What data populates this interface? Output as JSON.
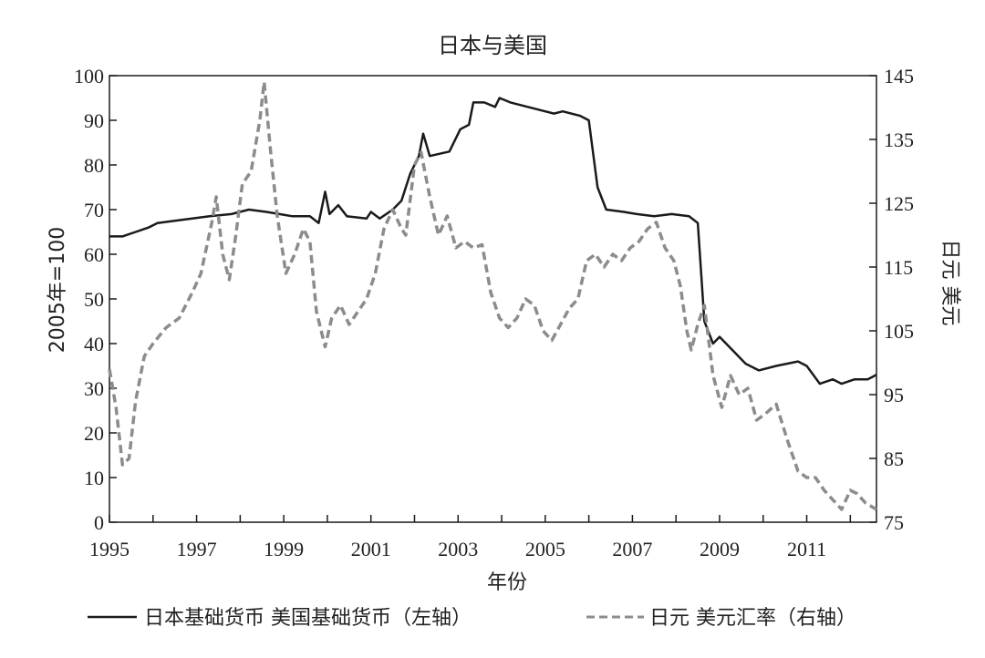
{
  "chart_data": {
    "type": "line",
    "title": "日本与美国",
    "xlabel": "年份",
    "ylabel_left": "2005年=100",
    "ylabel_right": "日元 美元",
    "xlim": [
      1995,
      2012.6
    ],
    "ylim_left": [
      0,
      100
    ],
    "ylim_right": [
      75,
      145
    ],
    "x_ticks": [
      1995,
      1997,
      1999,
      2001,
      2003,
      2005,
      2007,
      2009,
      2011
    ],
    "y_ticks_left": [
      0,
      10,
      20,
      30,
      40,
      50,
      60,
      70,
      80,
      90,
      100
    ],
    "y_ticks_right": [
      75,
      85,
      95,
      105,
      115,
      125,
      135,
      145
    ],
    "grid": false,
    "legend_position": "bottom",
    "series": [
      {
        "name": "日本基础货币 美国基础货币（左轴）",
        "axis": "left",
        "color": "#1a1a1a",
        "style": "solid",
        "points": [
          [
            1995.0,
            64
          ],
          [
            1995.3,
            64
          ],
          [
            1995.6,
            65
          ],
          [
            1995.9,
            66
          ],
          [
            1996.1,
            67
          ],
          [
            1996.5,
            67.5
          ],
          [
            1996.9,
            68
          ],
          [
            1997.3,
            68.5
          ],
          [
            1997.8,
            69
          ],
          [
            1998.2,
            70
          ],
          [
            1998.6,
            69.5
          ],
          [
            1998.9,
            69
          ],
          [
            1999.2,
            68.5
          ],
          [
            1999.6,
            68.5
          ],
          [
            1999.8,
            67
          ],
          [
            1999.95,
            74
          ],
          [
            2000.05,
            69
          ],
          [
            2000.25,
            71
          ],
          [
            2000.45,
            68.5
          ],
          [
            2000.9,
            68
          ],
          [
            2001.0,
            69.5
          ],
          [
            2001.2,
            68
          ],
          [
            2001.5,
            70
          ],
          [
            2001.7,
            72
          ],
          [
            2001.9,
            78
          ],
          [
            2002.1,
            82
          ],
          [
            2002.2,
            87
          ],
          [
            2002.35,
            82
          ],
          [
            2002.8,
            83
          ],
          [
            2003.05,
            88
          ],
          [
            2003.25,
            89
          ],
          [
            2003.35,
            94
          ],
          [
            2003.6,
            94
          ],
          [
            2003.85,
            93
          ],
          [
            2003.95,
            95
          ],
          [
            2004.2,
            94
          ],
          [
            2004.6,
            93
          ],
          [
            2005.0,
            92
          ],
          [
            2005.2,
            91.5
          ],
          [
            2005.4,
            92
          ],
          [
            2005.8,
            91
          ],
          [
            2006.0,
            90
          ],
          [
            2006.2,
            75
          ],
          [
            2006.4,
            70
          ],
          [
            2006.8,
            69.5
          ],
          [
            2007.1,
            69
          ],
          [
            2007.5,
            68.5
          ],
          [
            2007.9,
            69
          ],
          [
            2008.3,
            68.5
          ],
          [
            2008.5,
            67
          ],
          [
            2008.65,
            45
          ],
          [
            2008.85,
            40
          ],
          [
            2009.0,
            41.5
          ],
          [
            2009.3,
            38.5
          ],
          [
            2009.6,
            35.5
          ],
          [
            2009.9,
            34
          ],
          [
            2010.3,
            35
          ],
          [
            2010.8,
            36
          ],
          [
            2011.0,
            35
          ],
          [
            2011.3,
            31
          ],
          [
            2011.6,
            32
          ],
          [
            2011.8,
            31
          ],
          [
            2012.1,
            32
          ],
          [
            2012.4,
            32
          ],
          [
            2012.6,
            33
          ]
        ]
      },
      {
        "name": "日元 美元汇率（右轴）",
        "axis": "right",
        "color": "#8c8c8c",
        "style": "dashed",
        "points": [
          [
            1995.0,
            99
          ],
          [
            1995.15,
            93
          ],
          [
            1995.3,
            84
          ],
          [
            1995.45,
            85
          ],
          [
            1995.6,
            94
          ],
          [
            1995.8,
            101
          ],
          [
            1996.0,
            103
          ],
          [
            1996.3,
            105.5
          ],
          [
            1996.6,
            107
          ],
          [
            1996.9,
            111
          ],
          [
            1997.1,
            114
          ],
          [
            1997.35,
            122
          ],
          [
            1997.45,
            126
          ],
          [
            1997.6,
            117
          ],
          [
            1997.75,
            113
          ],
          [
            1997.9,
            120
          ],
          [
            1998.05,
            128
          ],
          [
            1998.25,
            130
          ],
          [
            1998.45,
            138
          ],
          [
            1998.55,
            144
          ],
          [
            1998.7,
            133
          ],
          [
            1998.85,
            123
          ],
          [
            1999.05,
            114
          ],
          [
            1999.25,
            117
          ],
          [
            1999.45,
            121
          ],
          [
            1999.6,
            119
          ],
          [
            1999.75,
            108
          ],
          [
            1999.95,
            102.5
          ],
          [
            2000.1,
            107
          ],
          [
            2000.3,
            109
          ],
          [
            2000.5,
            106
          ],
          [
            2000.7,
            108
          ],
          [
            2000.9,
            110
          ],
          [
            2001.1,
            114
          ],
          [
            2001.3,
            121
          ],
          [
            2001.5,
            124
          ],
          [
            2001.7,
            121
          ],
          [
            2001.8,
            120
          ],
          [
            2002.0,
            131
          ],
          [
            2002.15,
            133
          ],
          [
            2002.35,
            126
          ],
          [
            2002.55,
            120
          ],
          [
            2002.75,
            123
          ],
          [
            2002.95,
            118
          ],
          [
            2003.15,
            119
          ],
          [
            2003.35,
            118
          ],
          [
            2003.55,
            118.5
          ],
          [
            2003.75,
            111
          ],
          [
            2003.95,
            107
          ],
          [
            2004.15,
            105.5
          ],
          [
            2004.35,
            107
          ],
          [
            2004.55,
            110
          ],
          [
            2004.75,
            109
          ],
          [
            2004.95,
            105
          ],
          [
            2005.15,
            103.5
          ],
          [
            2005.35,
            106
          ],
          [
            2005.55,
            108.5
          ],
          [
            2005.75,
            110
          ],
          [
            2005.95,
            116
          ],
          [
            2006.15,
            117
          ],
          [
            2006.35,
            115
          ],
          [
            2006.55,
            117
          ],
          [
            2006.75,
            116
          ],
          [
            2006.95,
            118
          ],
          [
            2007.15,
            119
          ],
          [
            2007.35,
            121
          ],
          [
            2007.55,
            122
          ],
          [
            2007.75,
            118
          ],
          [
            2007.95,
            116
          ],
          [
            2008.1,
            112
          ],
          [
            2008.25,
            105
          ],
          [
            2008.35,
            102
          ],
          [
            2008.5,
            106
          ],
          [
            2008.65,
            109
          ],
          [
            2008.85,
            98
          ],
          [
            2009.05,
            93
          ],
          [
            2009.25,
            98
          ],
          [
            2009.45,
            95
          ],
          [
            2009.65,
            96
          ],
          [
            2009.85,
            91
          ],
          [
            2010.05,
            92
          ],
          [
            2010.3,
            93.5
          ],
          [
            2010.55,
            88
          ],
          [
            2010.8,
            83
          ],
          [
            2011.0,
            82
          ],
          [
            2011.2,
            82
          ],
          [
            2011.4,
            80
          ],
          [
            2011.6,
            78.5
          ],
          [
            2011.8,
            77
          ],
          [
            2012.0,
            80
          ],
          [
            2012.15,
            79.5
          ],
          [
            2012.35,
            78
          ],
          [
            2012.6,
            77
          ]
        ]
      }
    ]
  }
}
